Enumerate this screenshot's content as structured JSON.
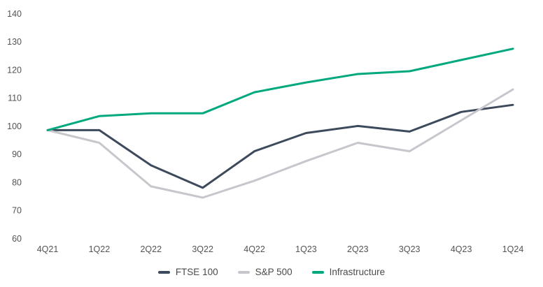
{
  "chart_data": {
    "type": "line",
    "title": "",
    "xlabel": "",
    "ylabel": "",
    "categories": [
      "4Q21",
      "1Q22",
      "2Q22",
      "3Q22",
      "4Q22",
      "1Q23",
      "2Q23",
      "3Q23",
      "4Q23",
      "1Q24"
    ],
    "series": [
      {
        "name": "FTSE 100",
        "color": "#3d4a5b",
        "values": [
          98.5,
          98.5,
          86,
          78,
          91,
          97.5,
          100,
          98,
          105,
          107.5
        ]
      },
      {
        "name": "S&P 500",
        "color": "#c6c6cd",
        "values": [
          98.5,
          94,
          78.5,
          74.5,
          80.5,
          87.5,
          94,
          91,
          102,
          113
        ]
      },
      {
        "name": "Infrastructure",
        "color": "#00a87d",
        "values": [
          98.5,
          103.5,
          104.5,
          104.5,
          112,
          115.5,
          118.5,
          119.5,
          123.5,
          127.5
        ]
      }
    ],
    "ylim": [
      60,
      140
    ],
    "yticks": [
      60,
      70,
      80,
      90,
      100,
      110,
      120,
      130,
      140
    ],
    "grid": false,
    "axis_line": false,
    "legend_position": "bottom",
    "axis_text_color": "#545454",
    "legend_text_color": "#4a4a4a",
    "background_color": "#ffffff"
  }
}
